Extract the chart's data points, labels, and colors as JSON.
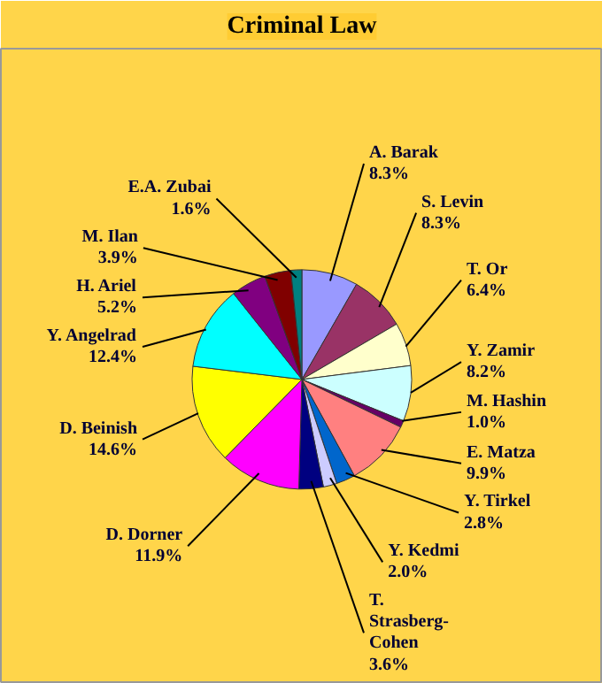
{
  "chart_data": {
    "type": "pie",
    "title": "Criminal Law",
    "categories": [
      "A. Barak",
      "S. Levin",
      "T. Or",
      "Y. Zamir",
      "M. Hashin",
      "E. Matza",
      "Y. Tirkel",
      "Y. Kedmi",
      "T. Strasberg-Cohen",
      "D. Dorner",
      "D. Beinish",
      "Y. Angelrad",
      "H. Ariel",
      "M. Ilan",
      "E.A. Zubai"
    ],
    "values": [
      8.3,
      8.3,
      6.4,
      8.2,
      1.0,
      9.9,
      2.8,
      2.0,
      3.6,
      11.9,
      14.6,
      12.4,
      5.2,
      3.9,
      1.6
    ],
    "colors": [
      "#9999ff",
      "#993366",
      "#ffffcc",
      "#ccffff",
      "#660066",
      "#ff8080",
      "#0066cc",
      "#ccccff",
      "#000080",
      "#ff00ff",
      "#ffff00",
      "#00ffff",
      "#800080",
      "#800000",
      "#008080"
    ],
    "value_labels": [
      "8.3%",
      "8.3%",
      "6.4%",
      "8.2%",
      "1.0%",
      "9.9%",
      "2.8%",
      "2.0%",
      "3.6%",
      "11.9%",
      "14.6%",
      "12.4%",
      "5.2%",
      "3.9%",
      "1.6%"
    ]
  }
}
